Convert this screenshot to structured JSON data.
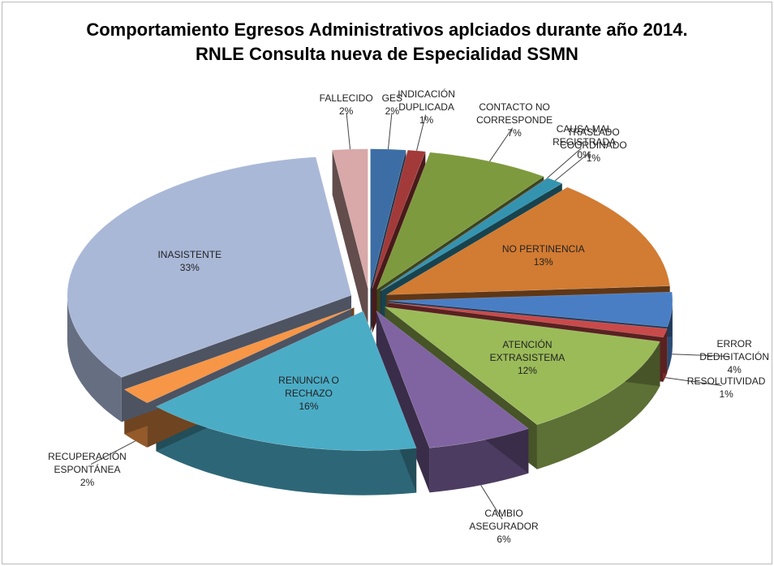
{
  "chart_data": {
    "type": "pie",
    "title": [
      "Comportamiento Egresos Administrativos aplciados durante año 2014.",
      "RNLE Consulta nueva de Especialidad SSMN"
    ],
    "categories": [
      "GES",
      "INDICACIÓN DUPLICADA",
      "CONTACTO NO CORRESPONDE",
      "CAUSA MAL REGISTRADA",
      "TRASLADO COORDINADO",
      "NO PERTINENCIA",
      "ERROR DEDIGITACIÓN",
      "RESOLUTIVIDAD",
      "ATENCIÓN EXTRASISTEMA",
      "CAMBIO ASEGURADOR",
      "RENUNCIA O RECHAZO",
      "RECUPERACIÓN ESPONTÁNEA",
      "INASISTENTE",
      "FALLECIDO"
    ],
    "values": [
      2,
      1,
      7,
      0,
      1,
      13,
      4,
      1,
      12,
      6,
      16,
      2,
      33,
      2
    ],
    "value_labels": [
      "2%",
      "1%",
      "7%",
      "0%",
      "1%",
      "13%",
      "4%",
      "1%",
      "12%",
      "6%",
      "16%",
      "2%",
      "33%",
      "2%"
    ],
    "colors": [
      "#3c6ea5",
      "#a33a3a",
      "#7e9a3e",
      "#6a4f8f",
      "#3494b0",
      "#d27b32",
      "#4a7ec4",
      "#c94a4a",
      "#9bbb59",
      "#8064a2",
      "#4bacc6",
      "#f79646",
      "#aab8d8",
      "#d9a8a8"
    ]
  }
}
